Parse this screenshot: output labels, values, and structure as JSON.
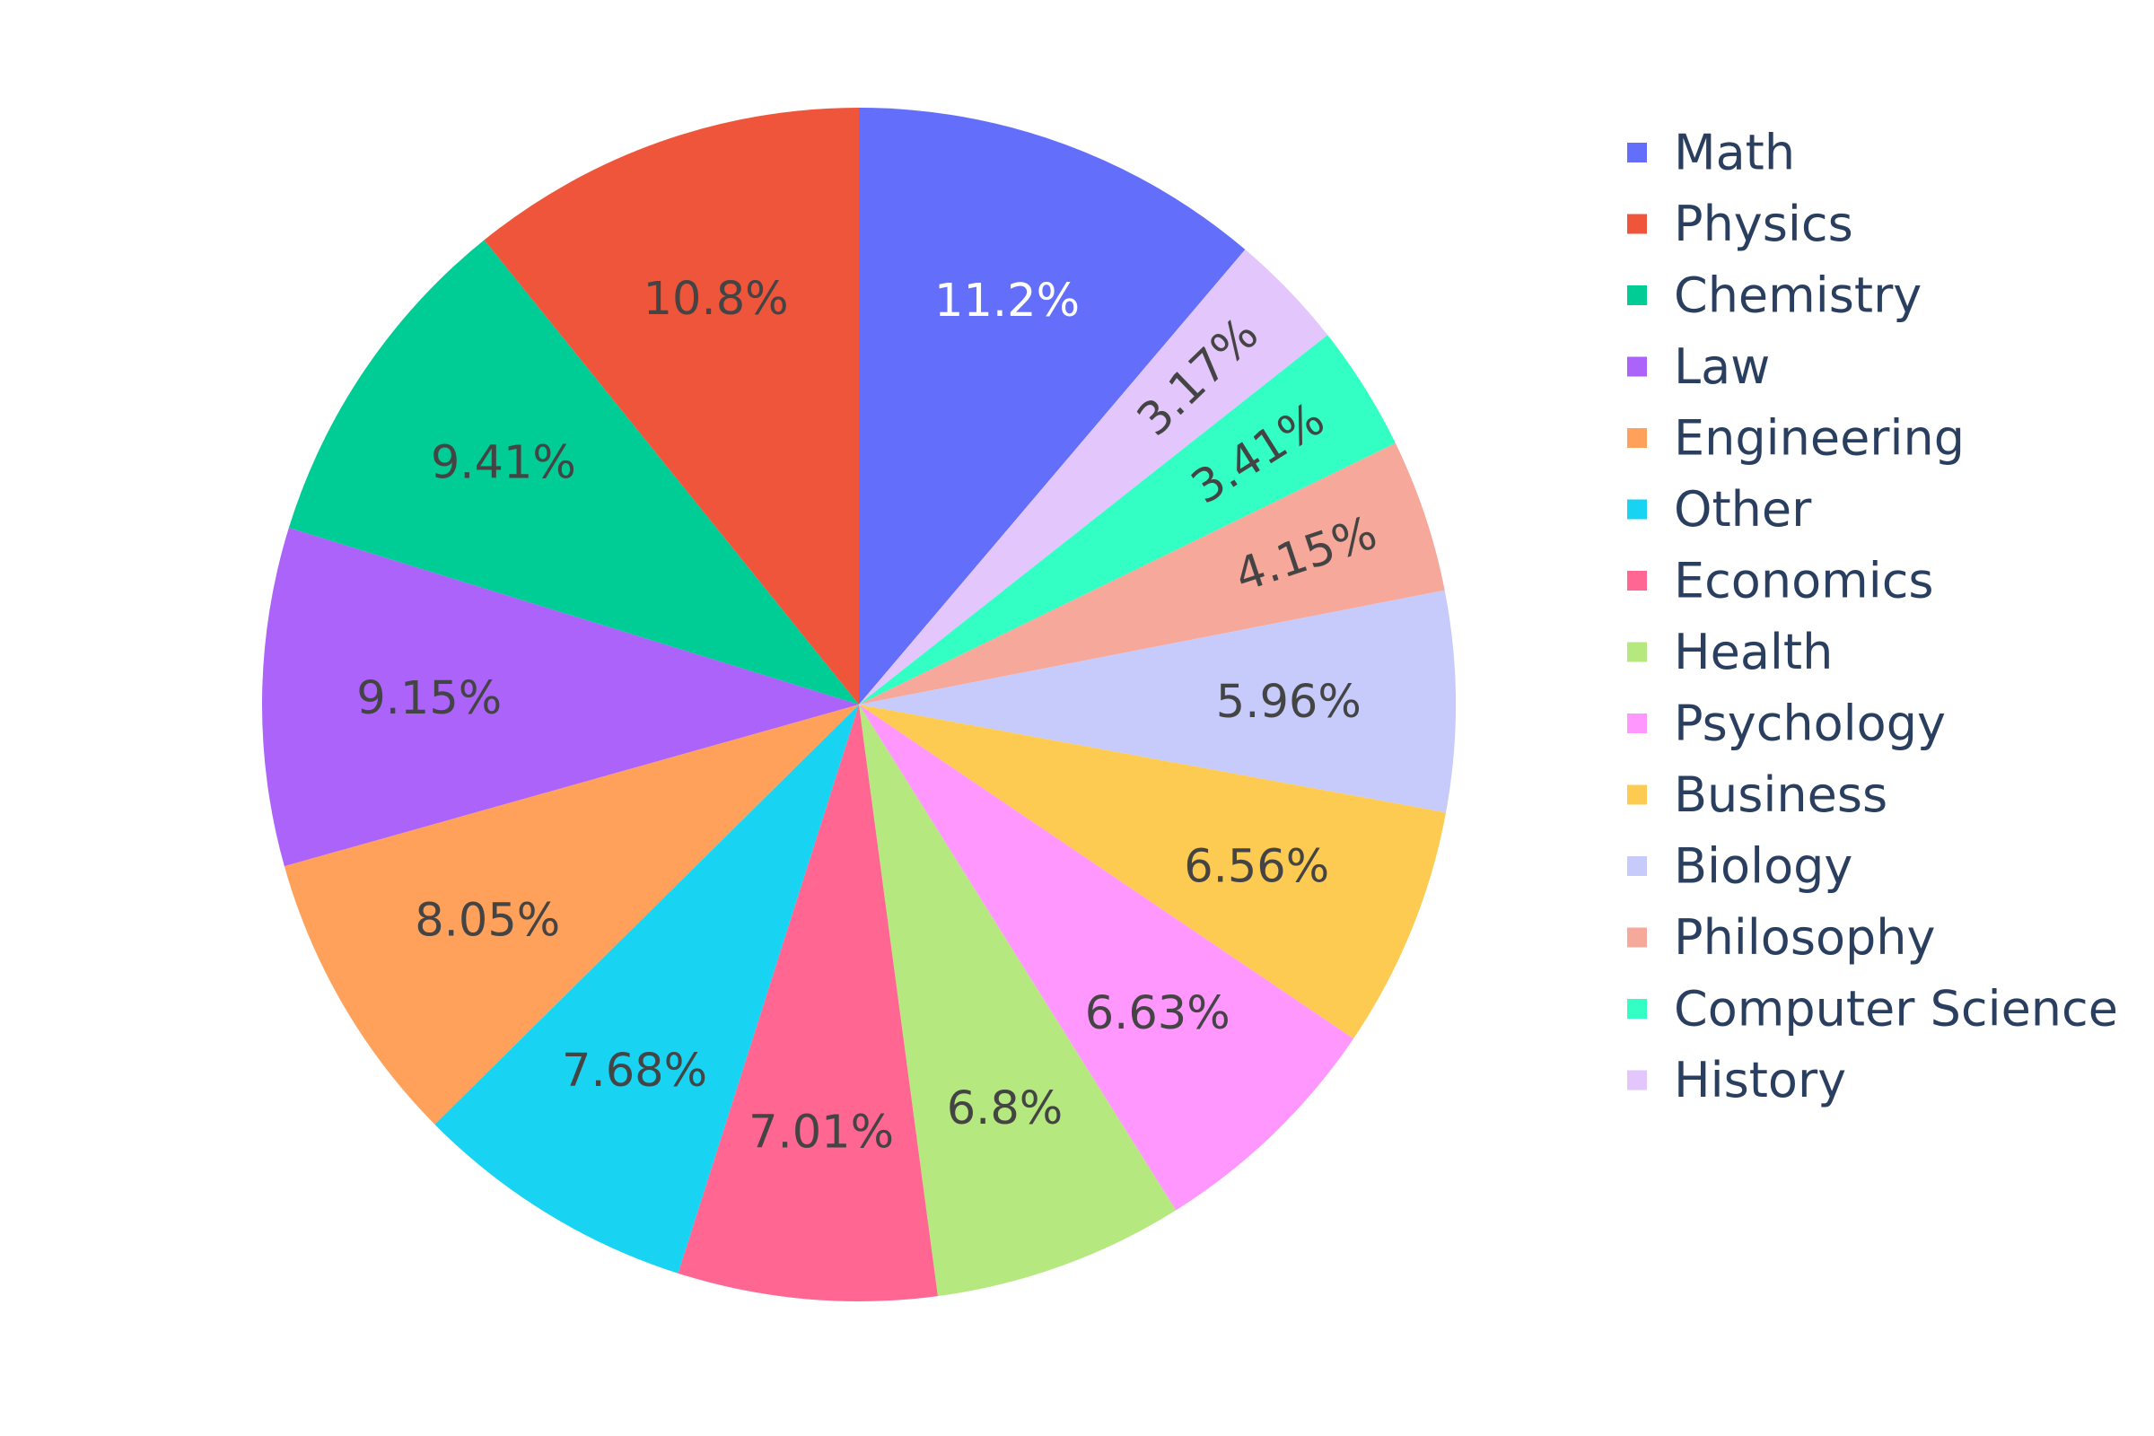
{
  "chart_data": {
    "type": "pie",
    "title": "",
    "direction": "clockwise",
    "start_angle_deg": 90,
    "legend_placement": "right",
    "label_format": "percent",
    "slices": [
      {
        "label": "Math",
        "percent": 11.2,
        "percent_text": "11.2%",
        "color": "#636efa",
        "text_color": "#ffffff"
      },
      {
        "label": "History",
        "percent": 3.17,
        "percent_text": "3.17%",
        "color": "#e2c6fc",
        "text_color": "#444444"
      },
      {
        "label": "Computer Science",
        "percent": 3.41,
        "percent_text": "3.41%",
        "color": "#33ffc5",
        "text_color": "#444444"
      },
      {
        "label": "Philosophy",
        "percent": 4.15,
        "percent_text": "4.15%",
        "color": "#f6a89b",
        "text_color": "#444444"
      },
      {
        "label": "Biology",
        "percent": 5.96,
        "percent_text": "5.96%",
        "color": "#c6cbfc",
        "text_color": "#444444"
      },
      {
        "label": "Business",
        "percent": 6.56,
        "percent_text": "6.56%",
        "color": "#fecb52",
        "text_color": "#444444"
      },
      {
        "label": "Psychology",
        "percent": 6.63,
        "percent_text": "6.63%",
        "color": "#ff97ff",
        "text_color": "#444444"
      },
      {
        "label": "Health",
        "percent": 6.8,
        "percent_text": "6.8%",
        "color": "#b6e880",
        "text_color": "#444444"
      },
      {
        "label": "Economics",
        "percent": 7.01,
        "percent_text": "7.01%",
        "color": "#ff6692",
        "text_color": "#444444"
      },
      {
        "label": "Other",
        "percent": 7.68,
        "percent_text": "7.68%",
        "color": "#19d3f3",
        "text_color": "#444444"
      },
      {
        "label": "Engineering",
        "percent": 8.05,
        "percent_text": "8.05%",
        "color": "#ffa15a",
        "text_color": "#444444"
      },
      {
        "label": "Law",
        "percent": 9.15,
        "percent_text": "9.15%",
        "color": "#ab63fa",
        "text_color": "#444444"
      },
      {
        "label": "Chemistry",
        "percent": 9.41,
        "percent_text": "9.41%",
        "color": "#00cc96",
        "text_color": "#444444"
      },
      {
        "label": "Physics",
        "percent": 10.8,
        "percent_text": "10.8%",
        "color": "#ef553b",
        "text_color": "#444444"
      }
    ],
    "legend": [
      {
        "label": "Math",
        "color": "#636efa"
      },
      {
        "label": "Physics",
        "color": "#ef553b"
      },
      {
        "label": "Chemistry",
        "color": "#00cc96"
      },
      {
        "label": "Law",
        "color": "#ab63fa"
      },
      {
        "label": "Engineering",
        "color": "#ffa15a"
      },
      {
        "label": "Other",
        "color": "#19d3f3"
      },
      {
        "label": "Economics",
        "color": "#ff6692"
      },
      {
        "label": "Health",
        "color": "#b6e880"
      },
      {
        "label": "Psychology",
        "color": "#ff97ff"
      },
      {
        "label": "Business",
        "color": "#fecb52"
      },
      {
        "label": "Biology",
        "color": "#c6cbfc"
      },
      {
        "label": "Philosophy",
        "color": "#f6a89b"
      },
      {
        "label": "Computer Science",
        "color": "#33ffc5"
      },
      {
        "label": "History",
        "color": "#e2c6fc"
      }
    ]
  }
}
